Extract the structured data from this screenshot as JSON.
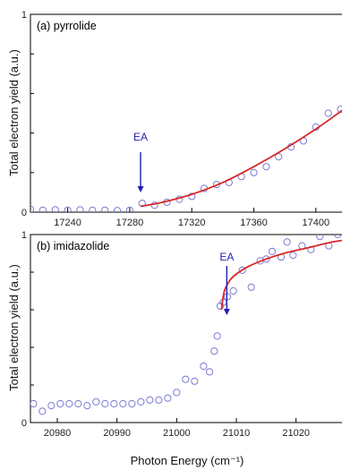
{
  "figure": {
    "ylabel": "Total electron yield (a.u.)",
    "xlabel": "Photon Energy (cm⁻¹)"
  },
  "colors": {
    "marker": "#7a7ad2",
    "fit": "#d92828",
    "arrow": "#1f1fb0",
    "axis": "#000000"
  },
  "chart_data": [
    {
      "type": "scatter",
      "panel_label": "(a) pyrrolide",
      "ylabel": "Total electron yield (a.u.)",
      "xlabel": "",
      "xlim": [
        17216,
        17418
      ],
      "ylim": [
        0,
        1
      ],
      "x_ticks": [
        17240,
        17280,
        17320,
        17360,
        17400
      ],
      "y_ticks": [
        {
          "value": 0,
          "label": "0"
        },
        {
          "value": 1,
          "label": "1"
        }
      ],
      "annotation": {
        "text": "EA",
        "x": 17287
      },
      "series": [
        {
          "kind": "markers",
          "points": [
            [
              17216,
              0.015
            ],
            [
              17224,
              0.01
            ],
            [
              17232,
              0.012
            ],
            [
              17240,
              0.01
            ],
            [
              17248,
              0.012
            ],
            [
              17256,
              0.01
            ],
            [
              17264,
              0.01
            ],
            [
              17272,
              0.008
            ],
            [
              17280,
              0.01
            ],
            [
              17288,
              0.045
            ],
            [
              17296,
              0.035
            ],
            [
              17304,
              0.05
            ],
            [
              17312,
              0.065
            ],
            [
              17320,
              0.08
            ],
            [
              17328,
              0.12
            ],
            [
              17336,
              0.14
            ],
            [
              17344,
              0.15
            ],
            [
              17352,
              0.18
            ],
            [
              17360,
              0.2
            ],
            [
              17368,
              0.23
            ],
            [
              17376,
              0.28
            ],
            [
              17384,
              0.33
            ],
            [
              17392,
              0.36
            ],
            [
              17400,
              0.43
            ],
            [
              17408,
              0.5
            ],
            [
              17416,
              0.52
            ],
            [
              17420,
              0.53
            ]
          ]
        },
        {
          "kind": "fit",
          "x": [
            17287,
            17300,
            17320,
            17340,
            17360,
            17380,
            17400,
            17418
          ],
          "y": [
            0.03,
            0.048,
            0.09,
            0.15,
            0.23,
            0.32,
            0.42,
            0.52
          ]
        }
      ]
    },
    {
      "type": "scatter",
      "panel_label": "(b) imidazolide",
      "ylabel": "Total electron yield (a.u.)",
      "xlabel": "Photon Energy (cm⁻¹)",
      "xlim": [
        20975.5,
        21028
      ],
      "ylim": [
        0,
        1
      ],
      "x_ticks": [
        20980,
        20990,
        21000,
        21010,
        21020
      ],
      "y_ticks": [
        {
          "value": 0,
          "label": "0"
        },
        {
          "value": 1,
          "label": "1"
        }
      ],
      "annotation": {
        "text": "EA",
        "x": 21008.4
      },
      "series": [
        {
          "kind": "markers",
          "points": [
            [
              20976,
              0.1
            ],
            [
              20977.5,
              0.06
            ],
            [
              20979,
              0.09
            ],
            [
              20980.5,
              0.1
            ],
            [
              20982,
              0.1
            ],
            [
              20983.5,
              0.1
            ],
            [
              20985,
              0.09
            ],
            [
              20986.5,
              0.11
            ],
            [
              20988,
              0.1
            ],
            [
              20989.5,
              0.1
            ],
            [
              20991,
              0.1
            ],
            [
              20992.5,
              0.1
            ],
            [
              20994,
              0.11
            ],
            [
              20995.5,
              0.12
            ],
            [
              20997,
              0.12
            ],
            [
              20998.5,
              0.13
            ],
            [
              21000,
              0.16
            ],
            [
              21001.5,
              0.23
            ],
            [
              21003,
              0.22
            ],
            [
              21004.5,
              0.3
            ],
            [
              21005.5,
              0.27
            ],
            [
              21006.3,
              0.38
            ],
            [
              21006.8,
              0.46
            ],
            [
              21007.3,
              0.62
            ],
            [
              21007.8,
              0.64
            ],
            [
              21008.5,
              0.67
            ],
            [
              21009.5,
              0.7
            ],
            [
              21011,
              0.81
            ],
            [
              21012.5,
              0.72
            ],
            [
              21014,
              0.86
            ],
            [
              21015,
              0.87
            ],
            [
              21016,
              0.91
            ],
            [
              21017.5,
              0.88
            ],
            [
              21018.5,
              0.96
            ],
            [
              21019.5,
              0.89
            ],
            [
              21021,
              0.94
            ],
            [
              21022.5,
              0.92
            ],
            [
              21024,
              0.99
            ],
            [
              21025.5,
              0.94
            ],
            [
              21027,
              1.0
            ]
          ]
        },
        {
          "kind": "fit",
          "x": [
            21007.5,
            21008,
            21009,
            21010,
            21012,
            21015,
            21018,
            21022,
            21026,
            21028
          ],
          "y": [
            0.6,
            0.7,
            0.76,
            0.79,
            0.83,
            0.87,
            0.9,
            0.93,
            0.96,
            0.97
          ]
        }
      ]
    }
  ]
}
